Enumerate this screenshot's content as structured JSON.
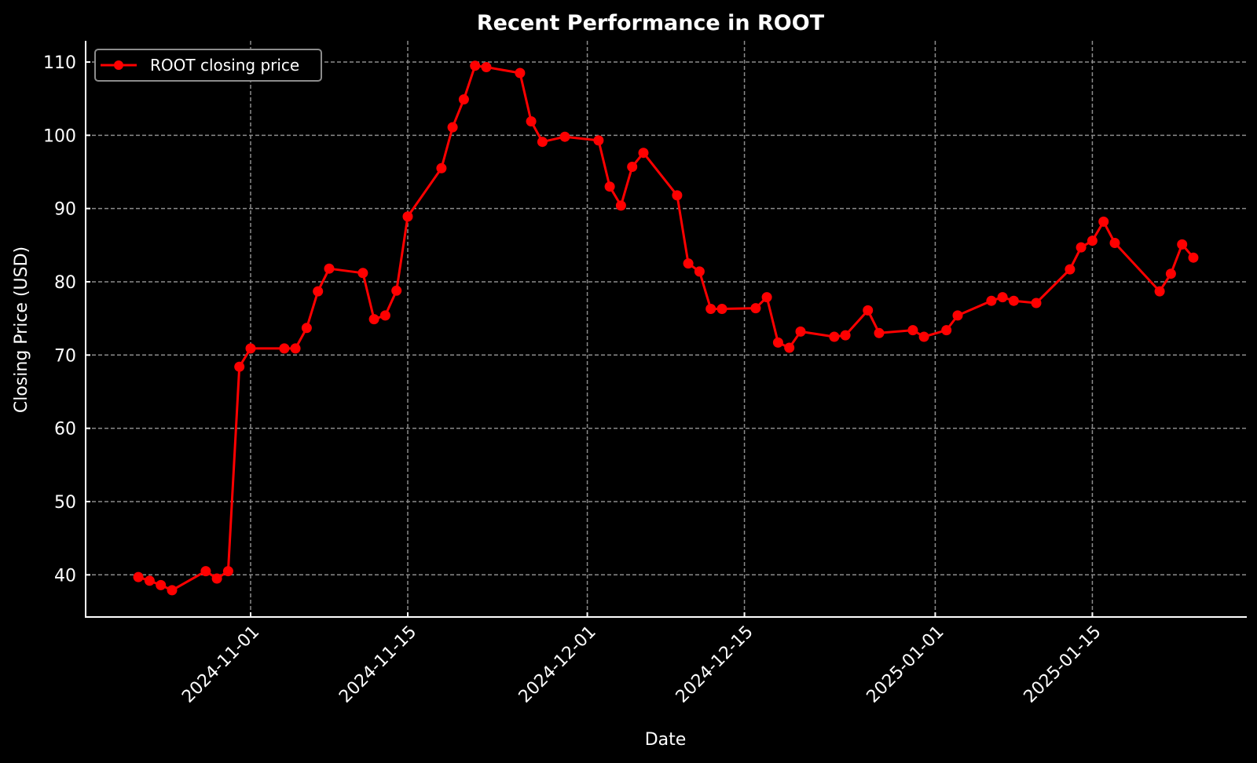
{
  "chart_data": {
    "type": "line",
    "title": "Recent Performance in ROOT",
    "xlabel": "Date",
    "ylabel": "Closing Price (USD)",
    "ylim": [
      34.25,
      112.9
    ],
    "xlim": [
      "2024-10-17",
      "2025-01-28"
    ],
    "grid": true,
    "legend_position": "upper left",
    "xticks": [
      "2024-11-01",
      "2024-11-15",
      "2024-12-01",
      "2024-12-15",
      "2025-01-01",
      "2025-01-15"
    ],
    "yticks": [
      40,
      50,
      60,
      70,
      80,
      90,
      100,
      110
    ],
    "series": [
      {
        "name": "ROOT closing price",
        "color": "#ff0000",
        "marker": "circle",
        "x": [
          "2024-10-22",
          "2024-10-23",
          "2024-10-24",
          "2024-10-25",
          "2024-10-28",
          "2024-10-29",
          "2024-10-30",
          "2024-10-31",
          "2024-11-01",
          "2024-11-04",
          "2024-11-05",
          "2024-11-06",
          "2024-11-07",
          "2024-11-08",
          "2024-11-11",
          "2024-11-12",
          "2024-11-13",
          "2024-11-14",
          "2024-11-15",
          "2024-11-18",
          "2024-11-19",
          "2024-11-20",
          "2024-11-21",
          "2024-11-22",
          "2024-11-25",
          "2024-11-26",
          "2024-11-27",
          "2024-11-29",
          "2024-12-02",
          "2024-12-03",
          "2024-12-04",
          "2024-12-05",
          "2024-12-06",
          "2024-12-09",
          "2024-12-10",
          "2024-12-11",
          "2024-12-12",
          "2024-12-13",
          "2024-12-16",
          "2024-12-17",
          "2024-12-18",
          "2024-12-19",
          "2024-12-20",
          "2024-12-23",
          "2024-12-24",
          "2024-12-26",
          "2024-12-27",
          "2024-12-30",
          "2024-12-31",
          "2025-01-02",
          "2025-01-03",
          "2025-01-06",
          "2025-01-07",
          "2025-01-08",
          "2025-01-10",
          "2025-01-13",
          "2025-01-14",
          "2025-01-15",
          "2025-01-16",
          "2025-01-17",
          "2025-01-21",
          "2025-01-22",
          "2025-01-23",
          "2025-01-24"
        ],
        "values": [
          39.7,
          39.2,
          38.6,
          37.9,
          40.5,
          39.5,
          40.5,
          68.4,
          70.9,
          70.9,
          70.9,
          73.7,
          78.7,
          81.8,
          81.2,
          74.9,
          75.4,
          78.8,
          88.9,
          95.5,
          101.1,
          104.9,
          109.5,
          109.3,
          108.5,
          101.9,
          99.1,
          99.8,
          99.3,
          93.0,
          90.4,
          95.7,
          97.6,
          91.8,
          82.5,
          81.4,
          76.3,
          76.3,
          76.4,
          77.9,
          71.7,
          71.0,
          73.2,
          72.5,
          72.7,
          76.1,
          73.0,
          73.4,
          72.5,
          73.4,
          75.4,
          77.4,
          77.9,
          77.4,
          77.1,
          81.7,
          84.7,
          85.6,
          88.2,
          85.3,
          78.7,
          81.1,
          85.1,
          83.3
        ]
      }
    ]
  },
  "colors": {
    "background": "#000000",
    "foreground": "#ffffff",
    "grid": "#8c8c8c",
    "line": "#ff0000",
    "legend_border": "#8c8c8c"
  }
}
